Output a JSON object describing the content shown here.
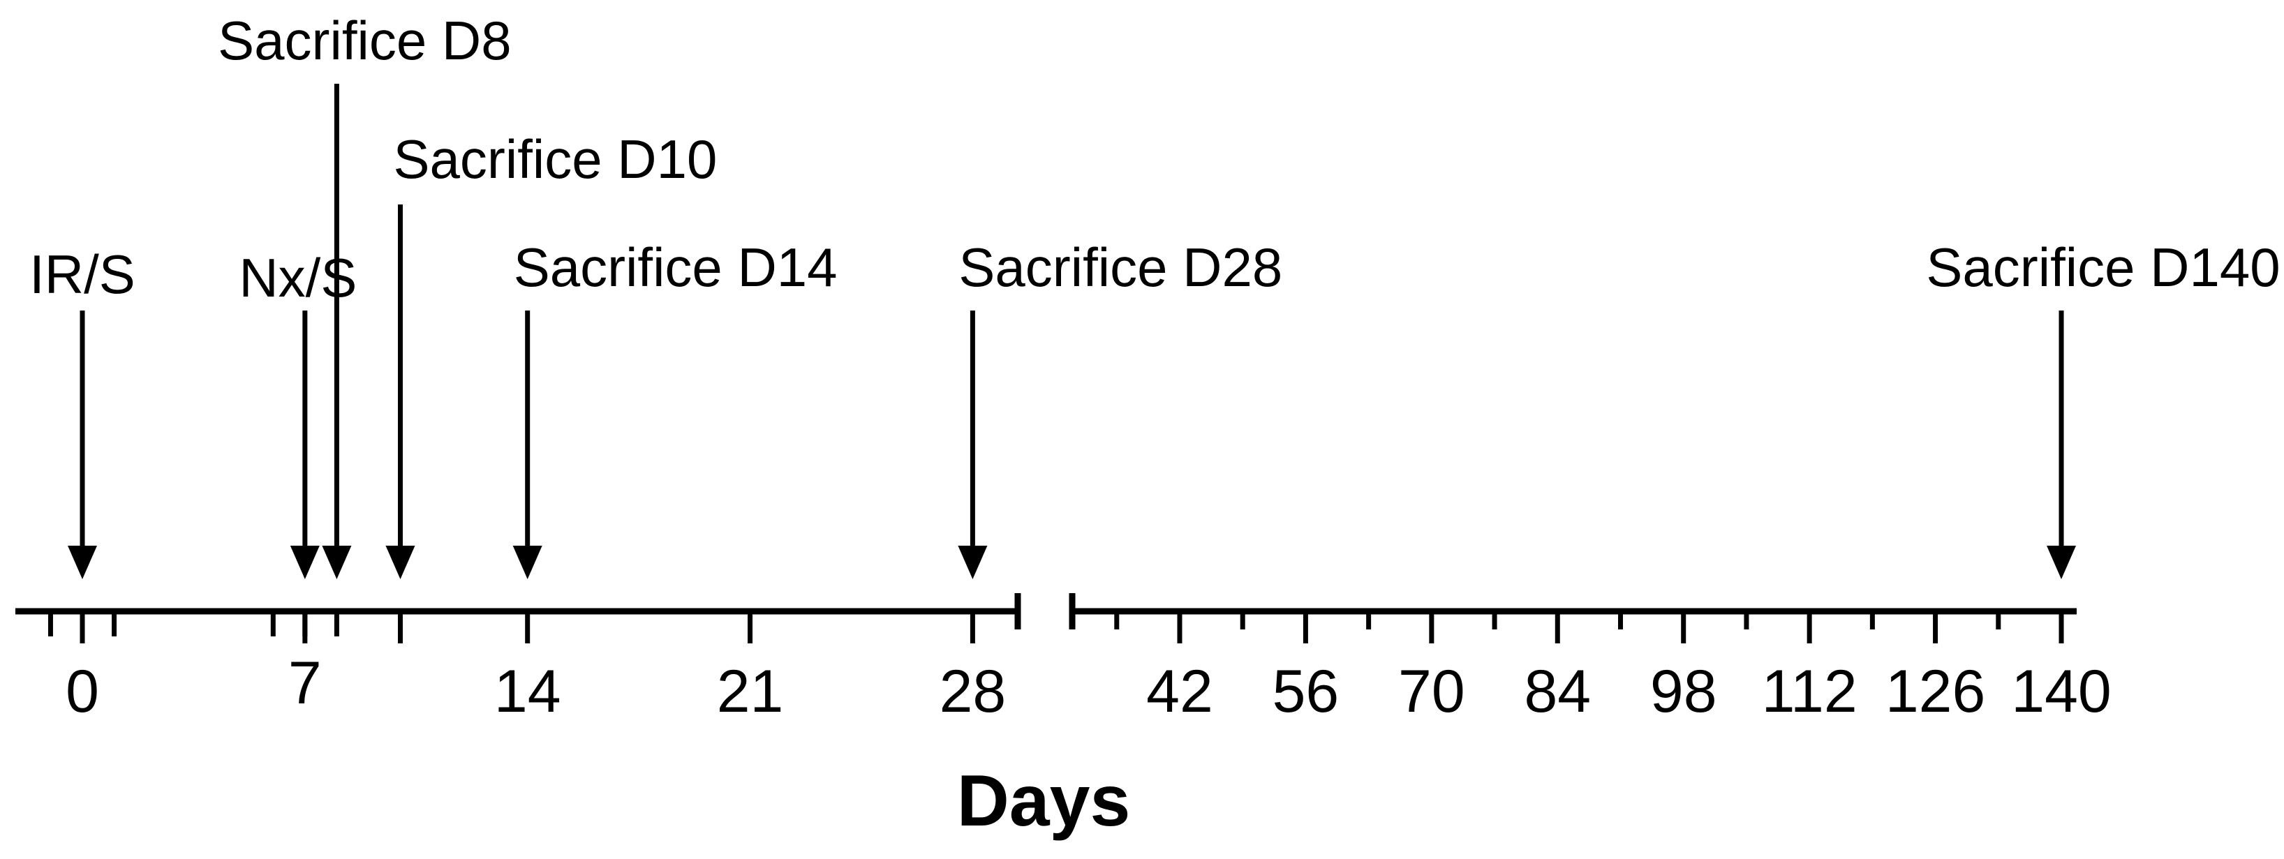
{
  "axis": {
    "title": "Days",
    "tick_labels": [
      "0",
      "7",
      "14",
      "21",
      "28",
      "42",
      "56",
      "70",
      "84",
      "98",
      "112",
      "126",
      "140"
    ],
    "break_between_days": [
      28,
      42
    ]
  },
  "events": [
    {
      "label": "IR/S",
      "day": 0
    },
    {
      "label": "Nx/S",
      "day": 7
    },
    {
      "label": "Sacrifice D8",
      "day": 8
    },
    {
      "label": "Sacrifice D10",
      "day": 10
    },
    {
      "label": "Sacrifice D14",
      "day": 14
    },
    {
      "label": "Sacrifice D28",
      "day": 28
    },
    {
      "label": "Sacrifice D140",
      "day": 140
    }
  ],
  "colors": {
    "line": "#000000",
    "background": "#ffffff"
  }
}
